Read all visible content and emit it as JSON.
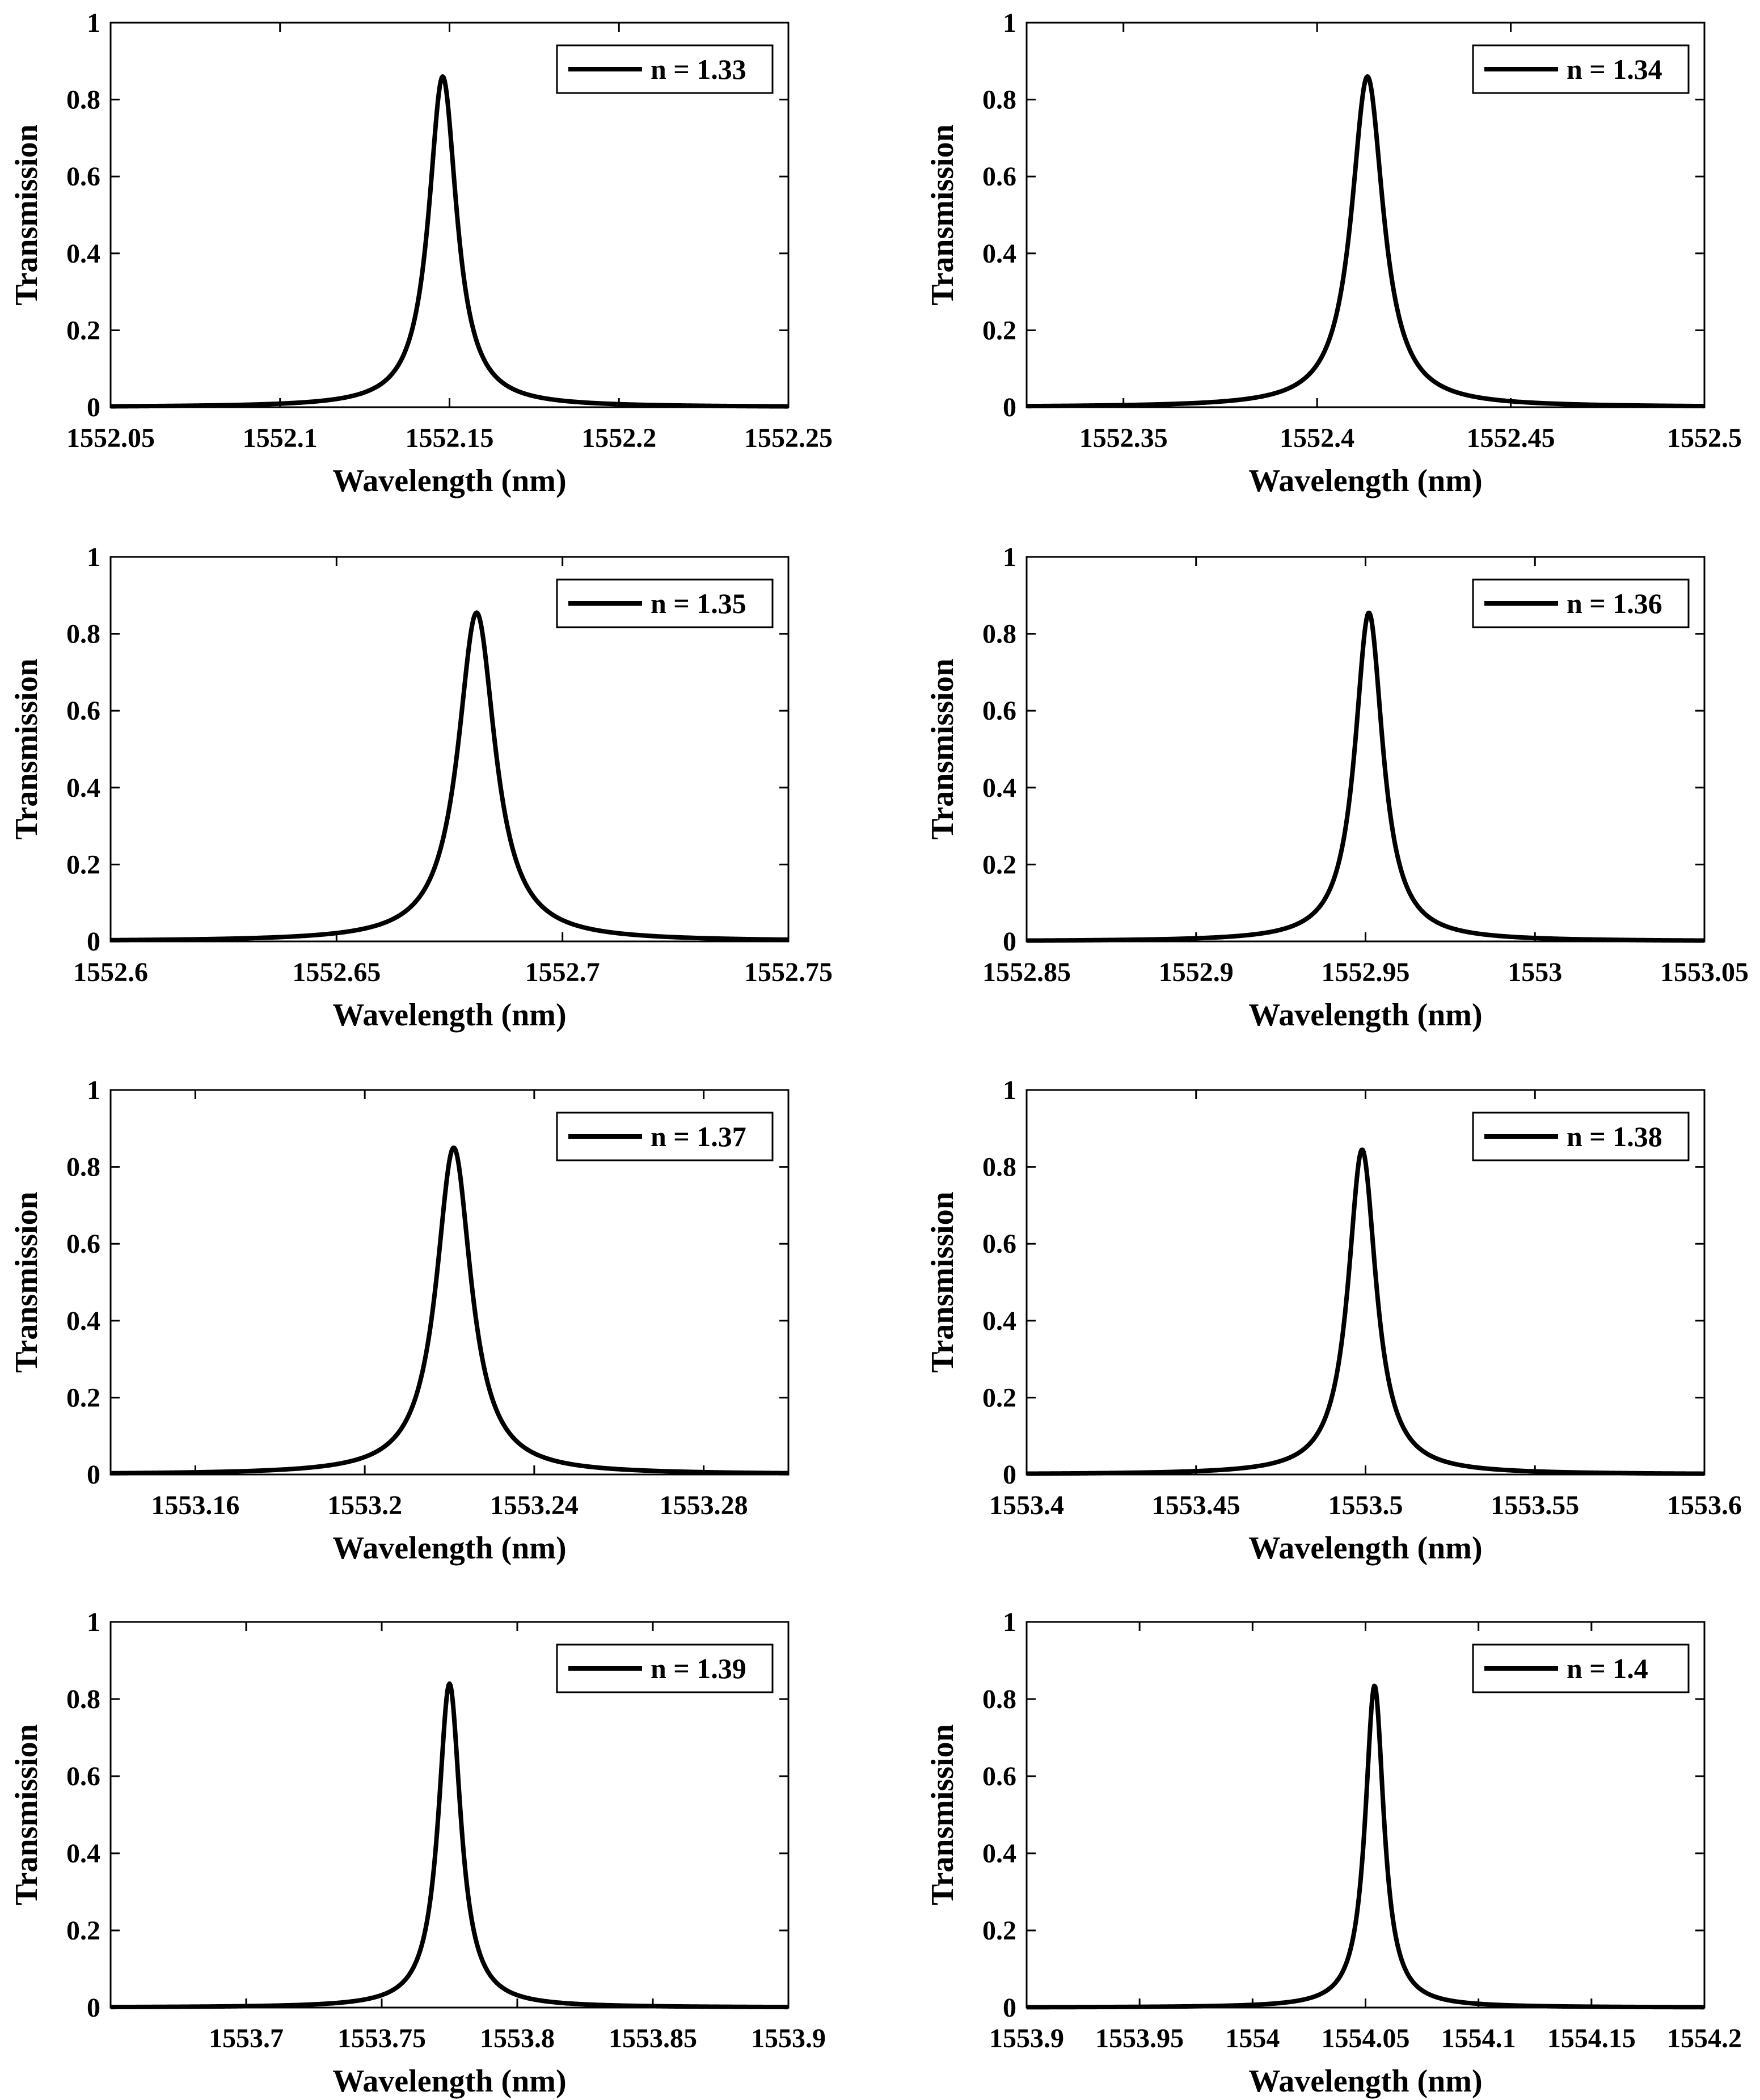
{
  "figure": {
    "xlabel_all": "Wavelength (nm)",
    "ylabel_all": "Transmission",
    "line_color": "#000000"
  },
  "chart_data": [
    {
      "type": "line",
      "legend": "n = 1.33",
      "legend_position": "top-right",
      "xlabel": "Wavelength (nm)",
      "ylabel": "Transmission",
      "xlim": [
        1552.05,
        1552.25
      ],
      "ylim": [
        0,
        1
      ],
      "xticks": [
        1552.05,
        1552.1,
        1552.15,
        1552.2,
        1552.25
      ],
      "xtick_labels": [
        "1552.05",
        "1552.1",
        "1552.15",
        "1552.2",
        "1552.25"
      ],
      "yticks": [
        0,
        0.2,
        0.4,
        0.6,
        0.8,
        1
      ],
      "ytick_labels": [
        "0",
        "0.2",
        "0.4",
        "0.6",
        "0.8",
        "1"
      ],
      "series": [
        {
          "name": "n = 1.33",
          "shape": "lorentzian",
          "peak_x": 1552.148,
          "peak_y": 0.86,
          "fwhm": 0.01
        }
      ]
    },
    {
      "type": "line",
      "legend": "n = 1.34",
      "legend_position": "top-right",
      "xlabel": "Wavelength (nm)",
      "ylabel": "Transmission",
      "xlim": [
        1552.325,
        1552.5
      ],
      "ylim": [
        0,
        1
      ],
      "xticks": [
        1552.35,
        1552.4,
        1552.45,
        1552.5
      ],
      "xtick_labels": [
        "1552.35",
        "1552.4",
        "1552.45",
        "1552.5"
      ],
      "yticks": [
        0,
        0.2,
        0.4,
        0.6,
        0.8,
        1
      ],
      "ytick_labels": [
        "0",
        "0.2",
        "0.4",
        "0.6",
        "0.8",
        "1"
      ],
      "series": [
        {
          "name": "n = 1.34",
          "shape": "lorentzian",
          "peak_x": 1552.413,
          "peak_y": 0.86,
          "fwhm": 0.01
        }
      ]
    },
    {
      "type": "line",
      "legend": "n = 1.35",
      "legend_position": "top-right",
      "xlabel": "Wavelength (nm)",
      "ylabel": "Transmission",
      "xlim": [
        1552.6,
        1552.75
      ],
      "ylim": [
        0,
        1
      ],
      "xticks": [
        1552.6,
        1552.65,
        1552.7,
        1552.75
      ],
      "xtick_labels": [
        "1552.6",
        "1552.65",
        "1552.7",
        "1552.75"
      ],
      "yticks": [
        0,
        0.2,
        0.4,
        0.6,
        0.8,
        1
      ],
      "ytick_labels": [
        "0",
        "0.2",
        "0.4",
        "0.6",
        "0.8",
        "1"
      ],
      "series": [
        {
          "name": "n = 1.35",
          "shape": "lorentzian",
          "peak_x": 1552.681,
          "peak_y": 0.855,
          "fwhm": 0.01
        }
      ]
    },
    {
      "type": "line",
      "legend": "n = 1.36",
      "legend_position": "top-right",
      "xlabel": "Wavelength (nm)",
      "ylabel": "Transmission",
      "xlim": [
        1552.85,
        1553.05
      ],
      "ylim": [
        0,
        1
      ],
      "xticks": [
        1552.85,
        1552.9,
        1552.95,
        1553.0,
        1553.05
      ],
      "xtick_labels": [
        "1552.85",
        "1552.9",
        "1552.95",
        "1553",
        "1553.05"
      ],
      "yticks": [
        0,
        0.2,
        0.4,
        0.6,
        0.8,
        1
      ],
      "ytick_labels": [
        "0",
        "0.2",
        "0.4",
        "0.6",
        "0.8",
        "1"
      ],
      "series": [
        {
          "name": "n = 1.36",
          "shape": "lorentzian",
          "peak_x": 1552.951,
          "peak_y": 0.855,
          "fwhm": 0.01
        }
      ]
    },
    {
      "type": "line",
      "legend": "n = 1.37",
      "legend_position": "top-right",
      "xlabel": "Wavelength (nm)",
      "ylabel": "Transmission",
      "xlim": [
        1553.14,
        1553.3
      ],
      "ylim": [
        0,
        1
      ],
      "xticks": [
        1553.16,
        1553.2,
        1553.24,
        1553.28
      ],
      "xtick_labels": [
        "1553.16",
        "1553.2",
        "1553.24",
        "1553.28"
      ],
      "yticks": [
        0,
        0.2,
        0.4,
        0.6,
        0.8,
        1
      ],
      "ytick_labels": [
        "0",
        "0.2",
        "0.4",
        "0.6",
        "0.8",
        "1"
      ],
      "series": [
        {
          "name": "n = 1.37",
          "shape": "lorentzian",
          "peak_x": 1553.221,
          "peak_y": 0.85,
          "fwhm": 0.01
        }
      ]
    },
    {
      "type": "line",
      "legend": "n = 1.38",
      "legend_position": "top-right",
      "xlabel": "Wavelength (nm)",
      "ylabel": "Transmission",
      "xlim": [
        1553.4,
        1553.6
      ],
      "ylim": [
        0,
        1
      ],
      "xticks": [
        1553.4,
        1553.45,
        1553.5,
        1553.55,
        1553.6
      ],
      "xtick_labels": [
        "1553.4",
        "1553.45",
        "1553.5",
        "1553.55",
        "1553.6"
      ],
      "yticks": [
        0,
        0.2,
        0.4,
        0.6,
        0.8,
        1
      ],
      "ytick_labels": [
        "0",
        "0.2",
        "0.4",
        "0.6",
        "0.8",
        "1"
      ],
      "series": [
        {
          "name": "n = 1.38",
          "shape": "lorentzian",
          "peak_x": 1553.499,
          "peak_y": 0.845,
          "fwhm": 0.01
        }
      ]
    },
    {
      "type": "line",
      "legend": "n = 1.39",
      "legend_position": "top-right",
      "xlabel": "Wavelength (nm)",
      "ylabel": "Transmission",
      "xlim": [
        1553.65,
        1553.9
      ],
      "ylim": [
        0,
        1
      ],
      "xticks": [
        1553.7,
        1553.75,
        1553.8,
        1553.85,
        1553.9
      ],
      "xtick_labels": [
        "1553.7",
        "1553.75",
        "1553.8",
        "1553.85",
        "1553.9"
      ],
      "yticks": [
        0,
        0.2,
        0.4,
        0.6,
        0.8,
        1
      ],
      "ytick_labels": [
        "0",
        "0.2",
        "0.4",
        "0.6",
        "0.8",
        "1"
      ],
      "series": [
        {
          "name": "n = 1.39",
          "shape": "lorentzian",
          "peak_x": 1553.775,
          "peak_y": 0.84,
          "fwhm": 0.01
        }
      ]
    },
    {
      "type": "line",
      "legend": "n = 1.4",
      "legend_position": "top-right",
      "xlabel": "Wavelength (nm)",
      "ylabel": "Transmission",
      "xlim": [
        1553.9,
        1554.2
      ],
      "ylim": [
        0,
        1
      ],
      "xticks": [
        1553.9,
        1553.95,
        1554.0,
        1554.05,
        1554.1,
        1554.15,
        1554.2
      ],
      "xtick_labels": [
        "1553.9",
        "1553.95",
        "1554",
        "1554.05",
        "1554.1",
        "1554.15",
        "1554.2"
      ],
      "yticks": [
        0,
        0.2,
        0.4,
        0.6,
        0.8,
        1
      ],
      "ytick_labels": [
        "0",
        "0.2",
        "0.4",
        "0.6",
        "0.8",
        "1"
      ],
      "series": [
        {
          "name": "n = 1.4",
          "shape": "lorentzian",
          "peak_x": 1554.054,
          "peak_y": 0.835,
          "fwhm": 0.01
        }
      ]
    }
  ]
}
